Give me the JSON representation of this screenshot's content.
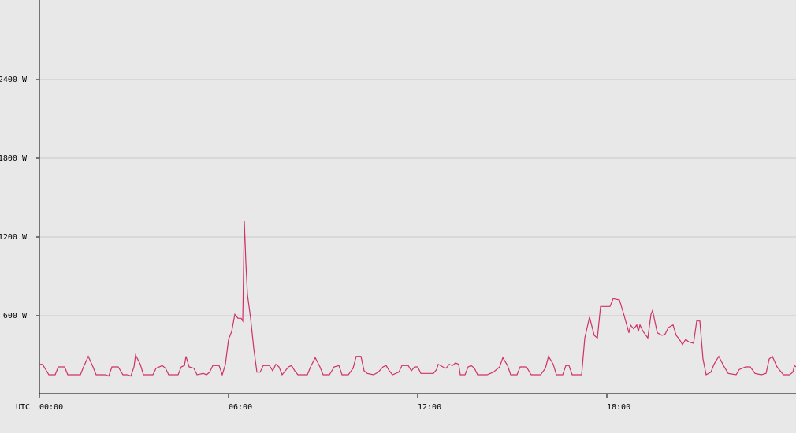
{
  "chart_data": {
    "type": "line",
    "xlabel": "UTC",
    "xlim": [
      0,
      24
    ],
    "xticks": [
      {
        "value": 0,
        "label": "00:00"
      },
      {
        "value": 6,
        "label": "06:00"
      },
      {
        "value": 12,
        "label": "12:00"
      },
      {
        "value": 18,
        "label": "18:00"
      }
    ],
    "ylim": [
      0,
      3000
    ],
    "yticks": [
      {
        "value": 600,
        "label": "600 W"
      },
      {
        "value": 1200,
        "label": "1200 W"
      },
      {
        "value": 1800,
        "label": "1800 W"
      },
      {
        "value": 2400,
        "label": "2400 W"
      }
    ],
    "grid": true,
    "x": [
      0.0,
      0.1,
      0.3,
      0.5,
      0.6,
      0.8,
      0.9,
      1.3,
      1.4,
      1.55,
      1.7,
      1.8,
      2.1,
      2.2,
      2.3,
      2.5,
      2.65,
      2.8,
      2.9,
      3.0,
      3.05,
      3.2,
      3.3,
      3.6,
      3.7,
      3.9,
      4.0,
      4.1,
      4.4,
      4.5,
      4.6,
      4.65,
      4.75,
      4.9,
      5.0,
      5.2,
      5.3,
      5.4,
      5.5,
      5.7,
      5.8,
      5.9,
      6.0,
      6.1,
      6.2,
      6.3,
      6.4,
      6.45,
      6.5,
      6.55,
      6.6,
      6.7,
      6.8,
      6.9,
      7.0,
      7.1,
      7.3,
      7.4,
      7.5,
      7.6,
      7.7,
      7.9,
      8.0,
      8.1,
      8.2,
      8.5,
      8.6,
      8.75,
      8.9,
      9.0,
      9.2,
      9.35,
      9.5,
      9.6,
      9.8,
      9.95,
      10.05,
      10.2,
      10.3,
      10.4,
      10.6,
      10.75,
      10.9,
      11.0,
      11.1,
      11.2,
      11.4,
      11.5,
      11.7,
      11.8,
      11.9,
      12.0,
      12.1,
      12.5,
      12.6,
      12.65,
      12.8,
      12.9,
      13.0,
      13.1,
      13.2,
      13.3,
      13.35,
      13.5,
      13.6,
      13.7,
      13.8,
      13.9,
      14.2,
      14.4,
      14.6,
      14.7,
      14.85,
      14.95,
      15.15,
      15.25,
      15.45,
      15.6,
      15.9,
      16.05,
      16.15,
      16.3,
      16.4,
      16.6,
      16.7,
      16.8,
      16.9,
      17.2,
      17.3,
      17.45,
      17.6,
      17.7,
      17.8,
      17.9,
      18.1,
      18.2,
      18.4,
      18.55,
      18.7,
      18.75,
      18.85,
      18.95,
      19.0,
      19.05,
      19.15,
      19.3,
      19.4,
      19.45,
      19.6,
      19.75,
      19.85,
      19.95,
      20.1,
      20.2,
      20.3,
      20.4,
      20.5,
      20.6,
      20.75,
      20.85,
      20.95,
      21.05,
      21.15,
      21.3,
      21.4,
      21.55,
      21.7,
      21.85,
      22.1,
      22.2,
      22.4,
      22.55,
      22.7,
      22.9,
      23.05,
      23.15,
      23.25,
      23.4,
      23.6,
      23.8,
      23.9,
      23.95,
      24.0
    ],
    "series": [
      {
        "color": "#d0306a",
        "values": [
          230,
          230,
          150,
          150,
          210,
          210,
          150,
          150,
          210,
          290,
          210,
          150,
          150,
          140,
          210,
          210,
          150,
          150,
          140,
          210,
          300,
          230,
          150,
          150,
          200,
          220,
          200,
          150,
          150,
          210,
          220,
          290,
          210,
          200,
          150,
          160,
          150,
          170,
          220,
          220,
          150,
          230,
          420,
          480,
          610,
          580,
          580,
          560,
          1320,
          1000,
          760,
          580,
          350,
          170,
          170,
          220,
          220,
          180,
          230,
          210,
          150,
          210,
          220,
          180,
          150,
          150,
          210,
          280,
          210,
          150,
          150,
          210,
          220,
          150,
          150,
          200,
          290,
          290,
          180,
          160,
          150,
          170,
          210,
          220,
          180,
          150,
          170,
          220,
          220,
          180,
          210,
          210,
          160,
          160,
          190,
          230,
          210,
          200,
          230,
          220,
          240,
          230,
          150,
          150,
          210,
          220,
          200,
          150,
          150,
          170,
          210,
          280,
          220,
          150,
          150,
          210,
          210,
          150,
          150,
          200,
          290,
          230,
          150,
          150,
          220,
          220,
          150,
          150,
          430,
          590,
          450,
          430,
          670,
          670,
          670,
          730,
          720,
          600,
          470,
          530,
          500,
          530,
          480,
          530,
          480,
          430,
          610,
          640,
          470,
          450,
          460,
          510,
          530,
          450,
          420,
          380,
          420,
          400,
          390,
          560,
          560,
          270,
          150,
          170,
          230,
          290,
          220,
          160,
          150,
          190,
          210,
          210,
          160,
          150,
          160,
          270,
          290,
          210,
          150,
          150,
          170,
          220,
          210
        ]
      }
    ]
  }
}
